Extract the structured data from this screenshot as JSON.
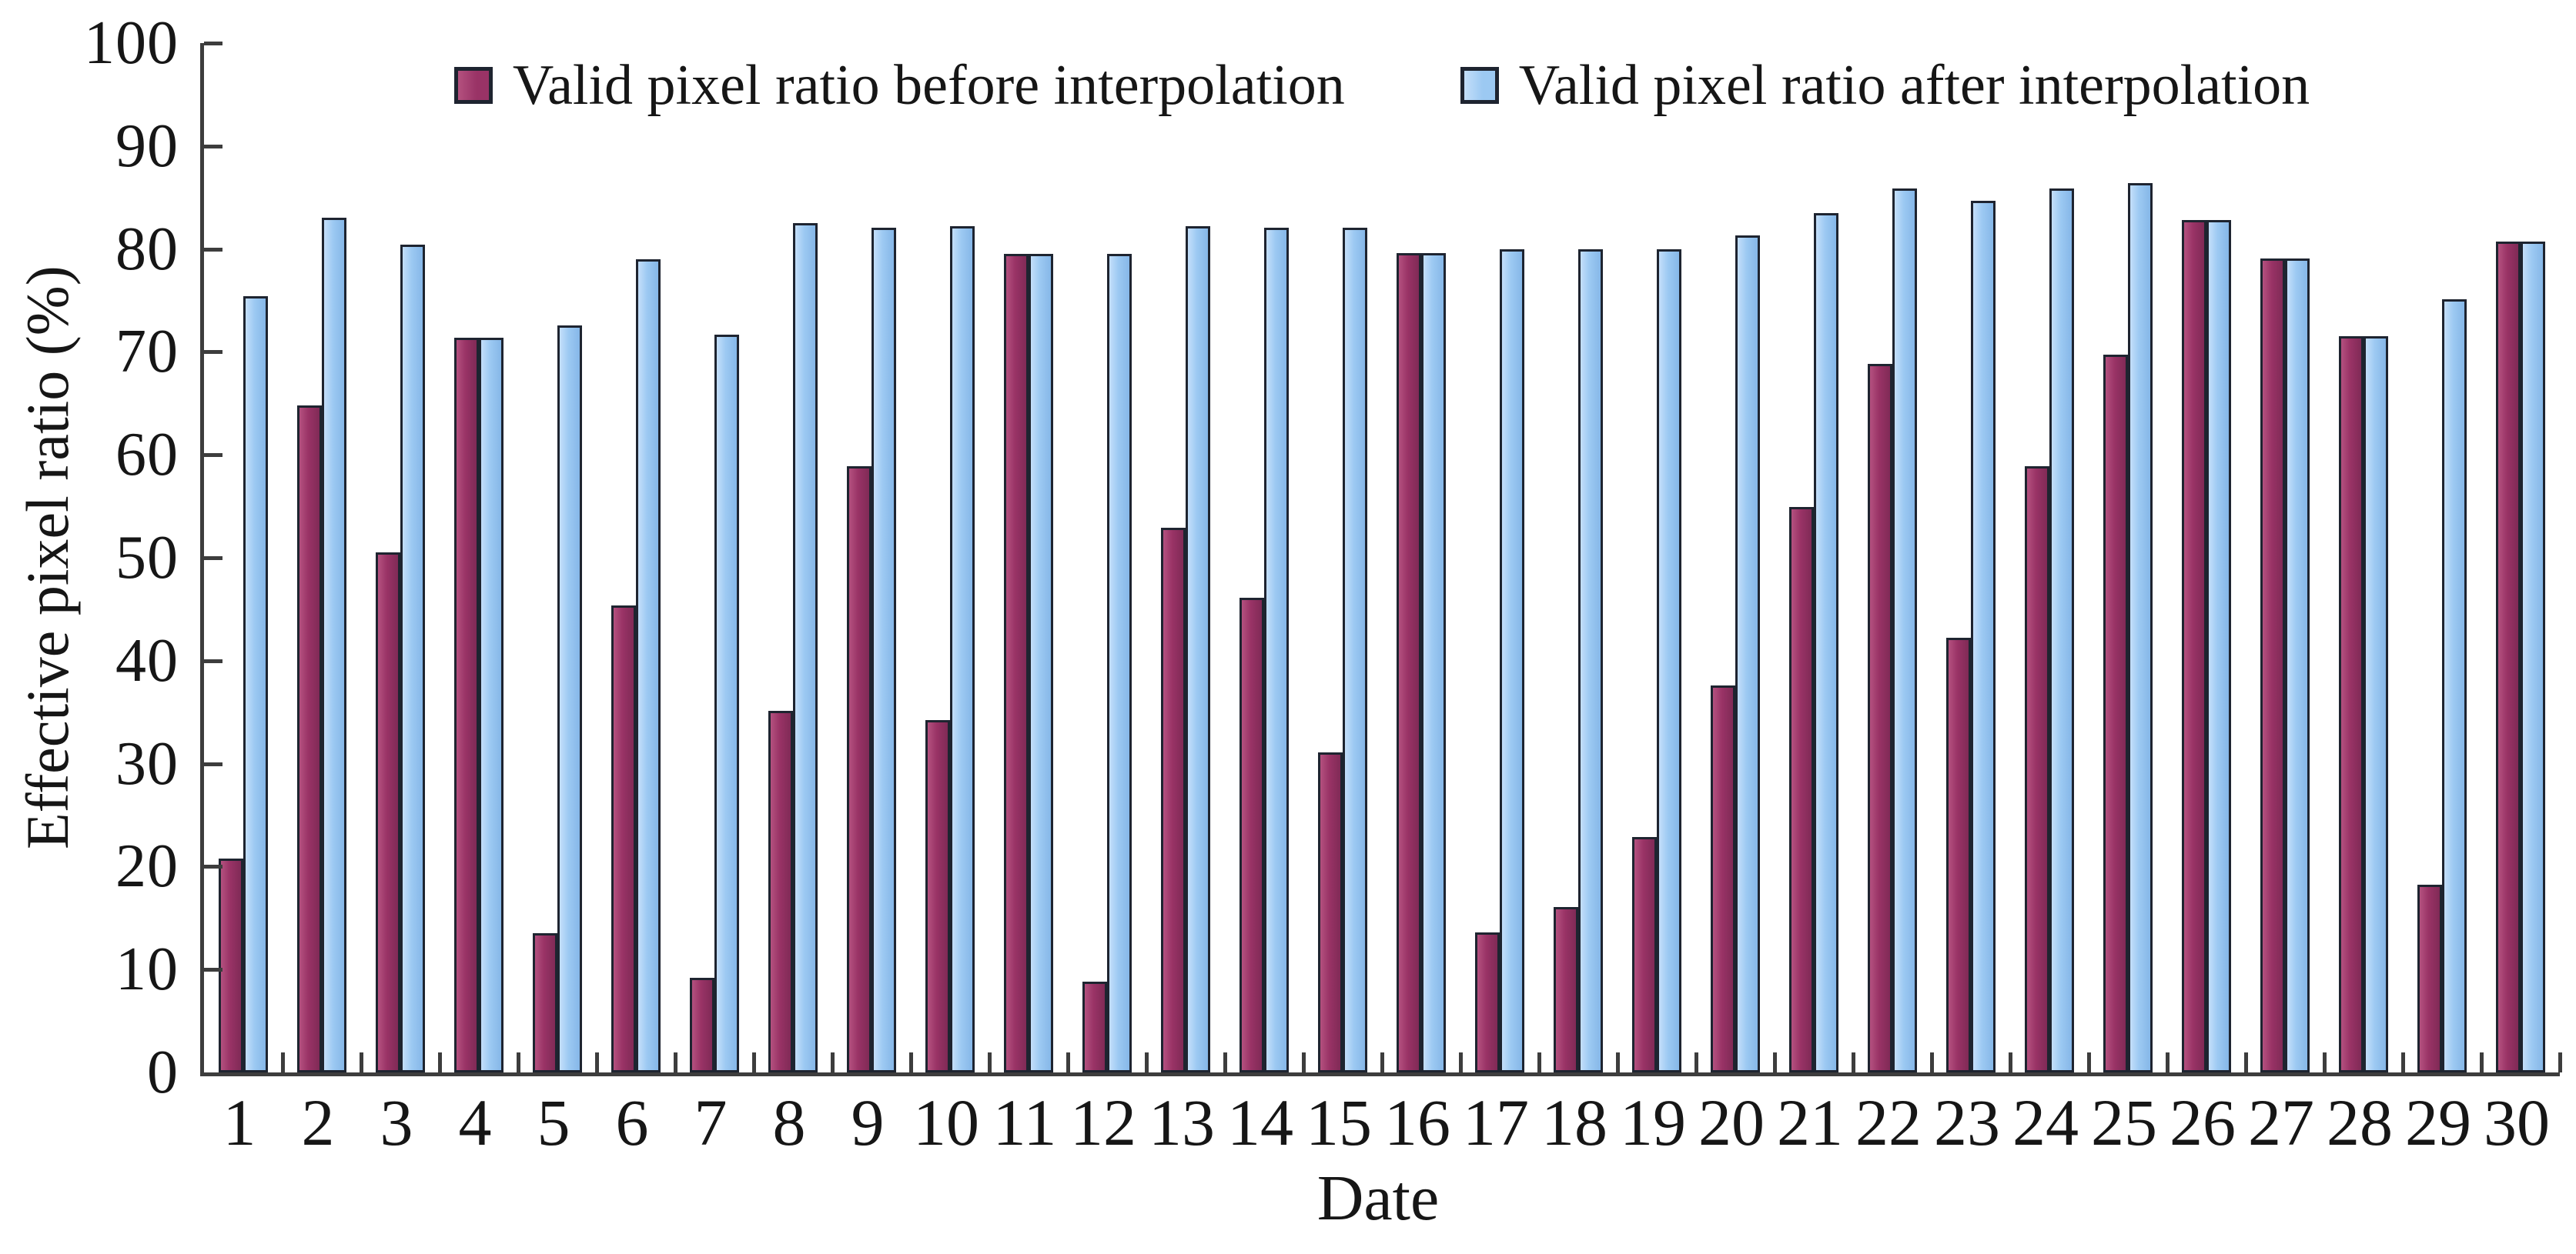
{
  "chart_data": {
    "type": "bar",
    "title": "",
    "xlabel": "Date",
    "ylabel": "Effective pixel ratio (%)",
    "ylim": [
      0,
      100
    ],
    "ytick_step": 10,
    "yticks": [
      100,
      90,
      80,
      70,
      60,
      50,
      40,
      30,
      20,
      10,
      0
    ],
    "grid": false,
    "legend_position": "top-center",
    "categories": [
      "1",
      "2",
      "3",
      "4",
      "5",
      "6",
      "7",
      "8",
      "9",
      "10",
      "11",
      "12",
      "13",
      "14",
      "15",
      "16",
      "17",
      "18",
      "19",
      "20",
      "21",
      "22",
      "23",
      "24",
      "25",
      "26",
      "27",
      "28",
      "29",
      "30"
    ],
    "series": [
      {
        "name": "Valid pixel ratio before interpolation",
        "fill": "#993366",
        "fill_light": "#B4517F",
        "fill_dark": "#802A56",
        "values": [
          20.8,
          64.8,
          50.5,
          71.4,
          13.5,
          45.4,
          9.2,
          35.1,
          58.9,
          34.2,
          79.5,
          8.8,
          52.9,
          46.1,
          31.1,
          79.6,
          13.6,
          16.1,
          22.9,
          37.6,
          54.9,
          68.8,
          42.2,
          58.9,
          69.7,
          82.8,
          79.1,
          71.5,
          18.2,
          80.7
        ]
      },
      {
        "name": "Valid pixel ratio after interpolation",
        "fill": "#9CC9F2",
        "fill_light": "#C4DFFA",
        "fill_dark": "#86B7E8",
        "values": [
          75.4,
          83.0,
          80.4,
          71.4,
          72.6,
          79.0,
          71.7,
          82.5,
          82.1,
          82.2,
          79.5,
          79.5,
          82.2,
          82.1,
          82.1,
          79.6,
          80.0,
          80.0,
          80.0,
          81.3,
          83.5,
          85.9,
          84.7,
          85.9,
          86.4,
          82.8,
          79.1,
          71.5,
          75.1,
          80.7
        ]
      }
    ],
    "colors": {
      "axis": "#3D3D3D",
      "text": "#161616",
      "bar_outline": "#1E2430",
      "background": "#FFFFFF"
    }
  }
}
